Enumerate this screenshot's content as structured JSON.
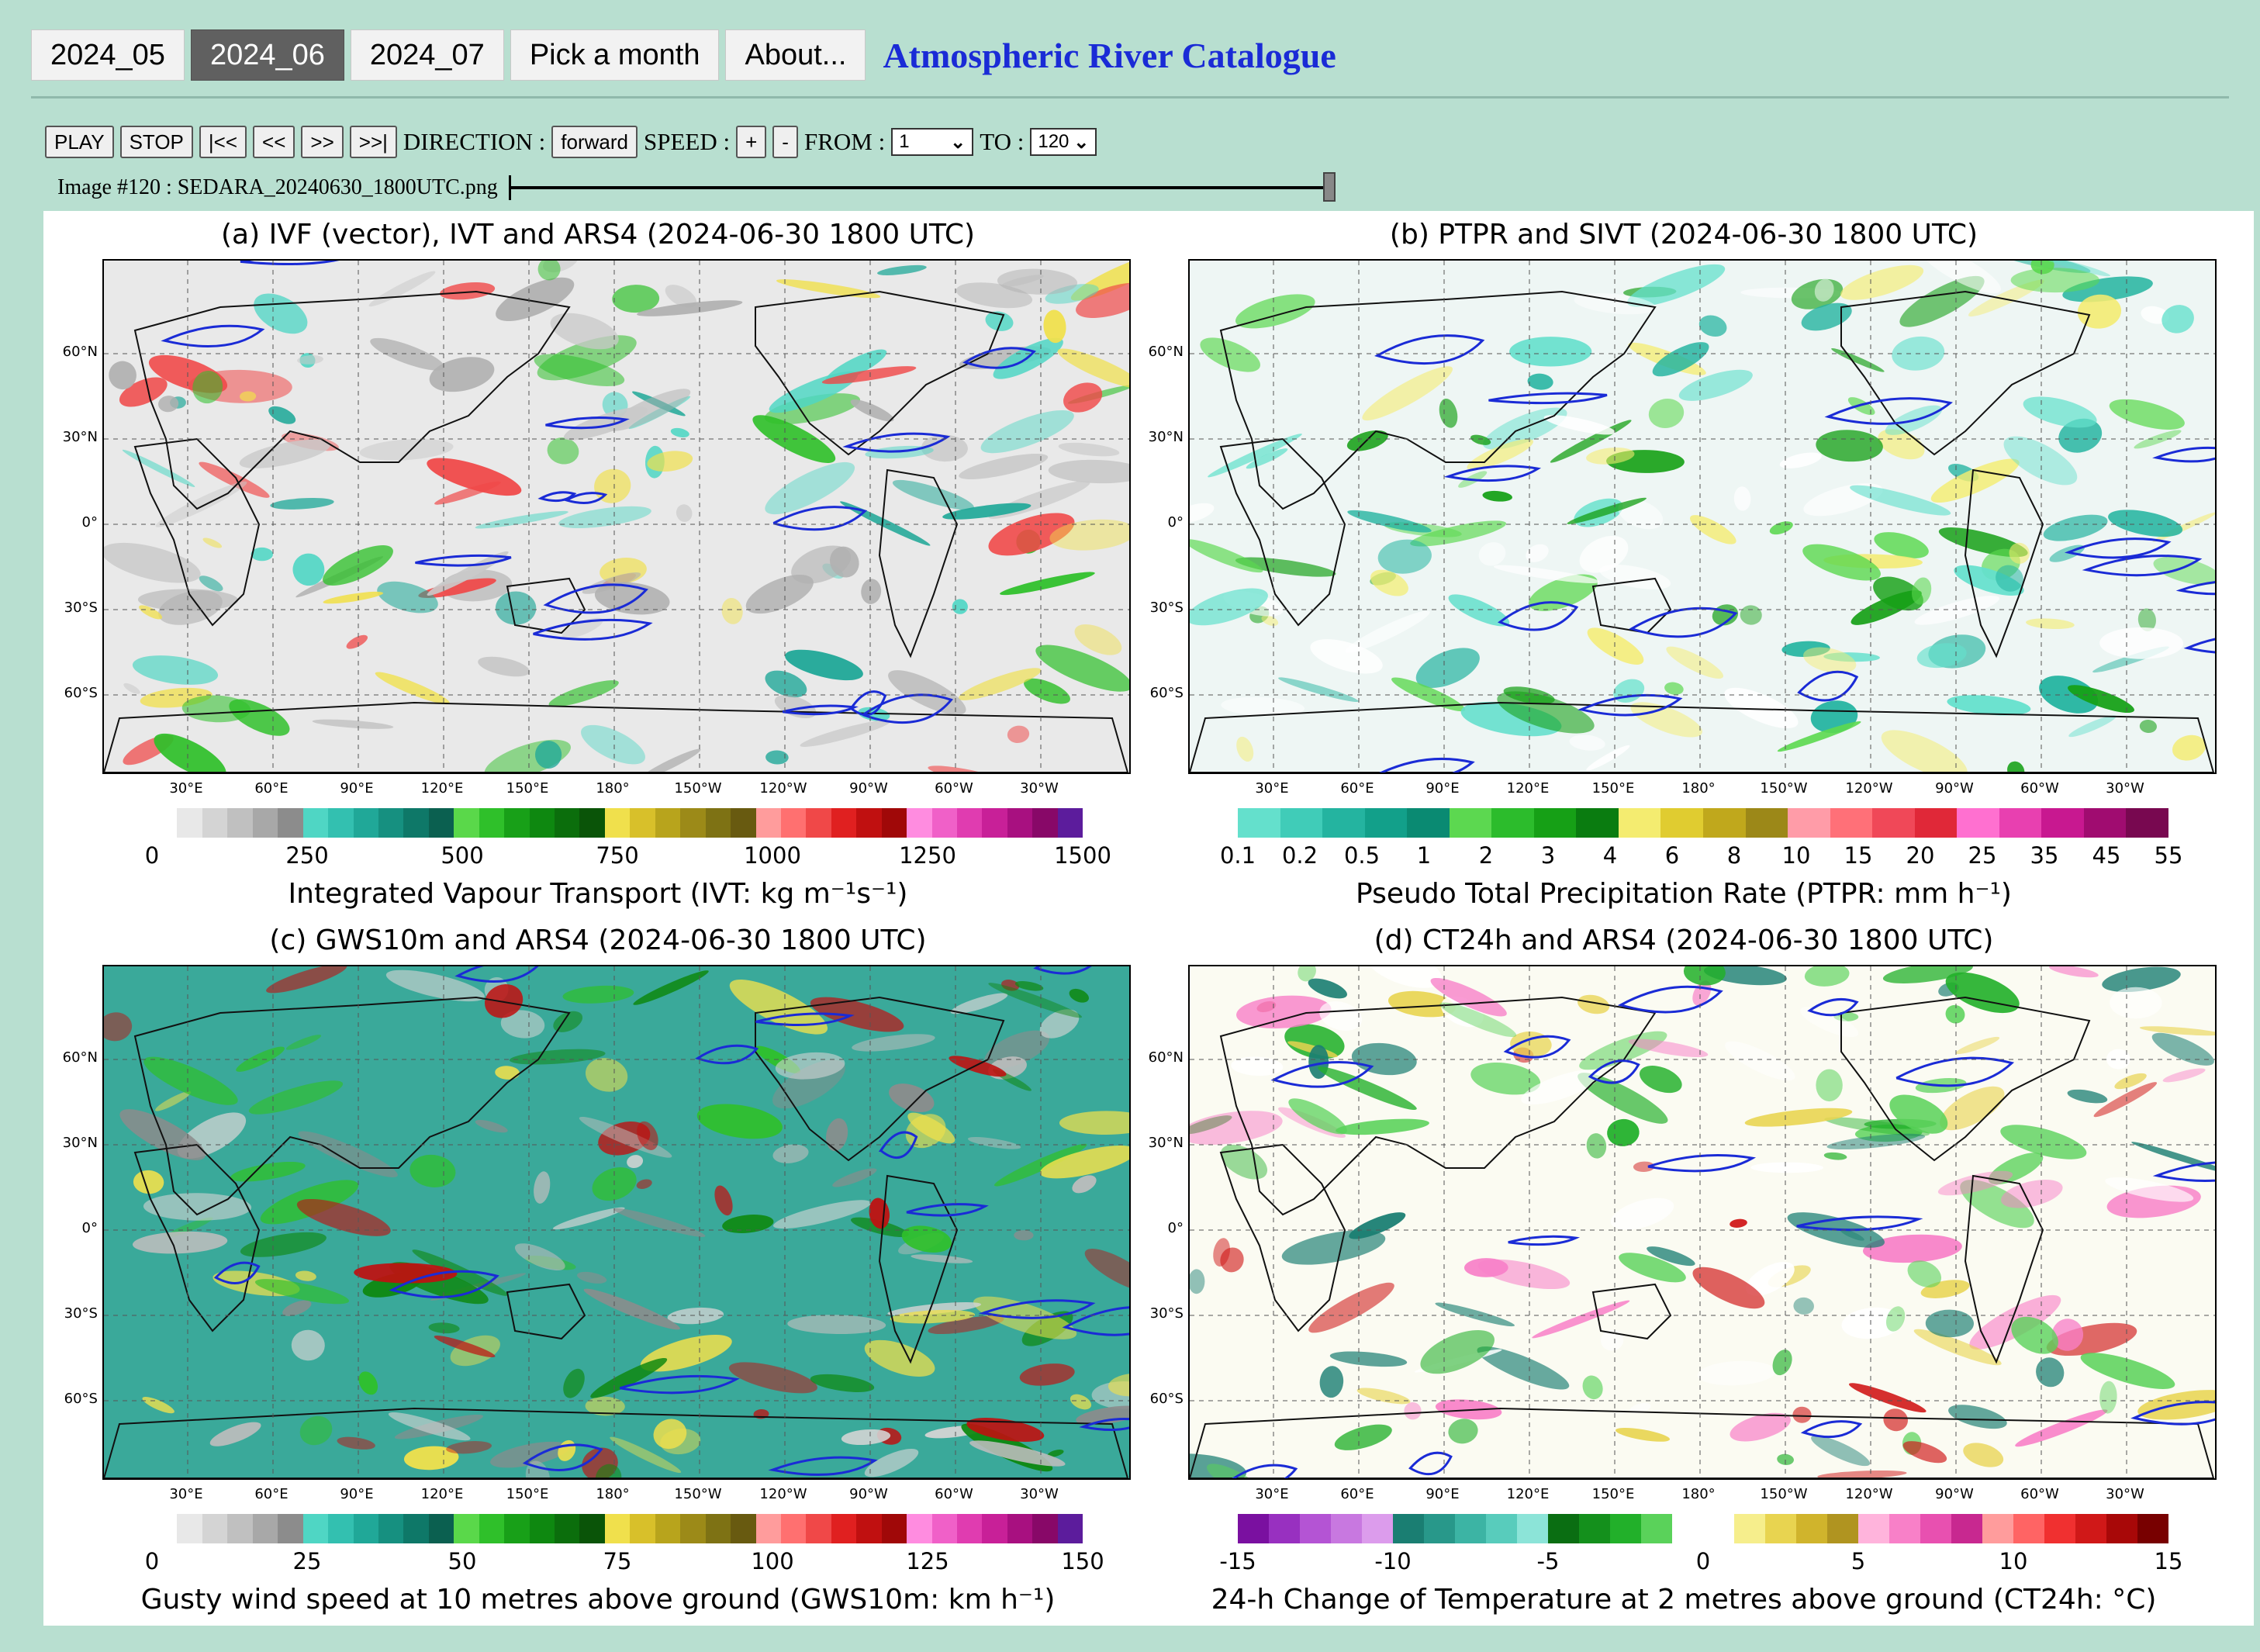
{
  "nav": {
    "tabs": [
      "2024_05",
      "2024_06",
      "2024_07",
      "Pick a month",
      "About..."
    ],
    "active_tab": "2024_06",
    "title": "Atmospheric River Catalogue"
  },
  "controls": {
    "play": "PLAY",
    "stop": "STOP",
    "first": "|<<",
    "prev": "<<",
    "next": ">>",
    "last": ">>|",
    "direction_label": "DIRECTION :",
    "direction_value": "forward",
    "speed_label": "SPEED :",
    "speed_plus": "+",
    "speed_minus": "-",
    "from_label": "FROM :",
    "from_value": "1",
    "to_label": "TO :",
    "to_value": "120",
    "image_caption": "Image #120 : SEDARA_20240630_1800UTC.png",
    "slider_position": 1.0
  },
  "axes": {
    "lat_labels": [
      "60°N",
      "30°N",
      "0°",
      "30°S",
      "60°S"
    ],
    "lon_labels": [
      "30°E",
      "60°E",
      "90°E",
      "120°E",
      "150°E",
      "180°",
      "150°W",
      "120°W",
      "90°W",
      "60°W",
      "30°W"
    ]
  },
  "panels": [
    {
      "title": "(a) IVF (vector), IVT and ARS4 (2024-06-30 1800 UTC)",
      "colorbar_label": "Integrated Vapour Transport (IVT: kg m⁻¹s⁻¹)",
      "ticks": [
        "0",
        "250",
        "500",
        "750",
        "1000",
        "1250",
        "1500"
      ],
      "colors": [
        "#ffffff",
        "#e8e8e8",
        "#d4d4d4",
        "#c0c0c0",
        "#a8a8a8",
        "#8c8c8c",
        "#4fd6c4",
        "#33c0b0",
        "#20a898",
        "#169080",
        "#0e7868",
        "#0b6050",
        "#5ad84a",
        "#2fc02a",
        "#18a018",
        "#0e8810",
        "#0b6e0c",
        "#0a5408",
        "#f0e04c",
        "#d8c02a",
        "#b8a41c",
        "#9c8a18",
        "#7e7214",
        "#685a10",
        "#ff9c9c",
        "#ff7070",
        "#f04848",
        "#e02020",
        "#c01010",
        "#a00808",
        "#ff8ce0",
        "#f060c8",
        "#e03cb0",
        "#c82098",
        "#a81080",
        "#880868",
        "#5c1c9c"
      ]
    },
    {
      "title": "(b) PTPR and SIVT (2024-06-30 1800 UTC)",
      "colorbar_label": "Pseudo Total Precipitation Rate (PTPR: mm h⁻¹)",
      "ticks": [
        "0.1",
        "0.2",
        "0.5",
        "1",
        "2",
        "3",
        "4",
        "6",
        "8",
        "10",
        "15",
        "20",
        "25",
        "35",
        "45",
        "55"
      ],
      "colors": [
        "#64e0cc",
        "#40ccb8",
        "#24b4a0",
        "#12a08a",
        "#0a8a72",
        "#5cd850",
        "#2cbc2c",
        "#16a016",
        "#0a7c10",
        "#f4ec70",
        "#e0cc30",
        "#c0a81c",
        "#9c8818",
        "#ff9ca8",
        "#ff7078",
        "#f04858",
        "#e02838",
        "#ff70d0",
        "#e840b0",
        "#c81890",
        "#a00c70",
        "#780850"
      ]
    },
    {
      "title": "(c) GWS10m and ARS4 (2024-06-30 1800 UTC)",
      "colorbar_label": "Gusty wind speed at 10 metres above ground (GWS10m: km h⁻¹)",
      "ticks": [
        "0",
        "25",
        "50",
        "75",
        "100",
        "125",
        "150"
      ],
      "colors": [
        "#ffffff",
        "#e8e8e8",
        "#d4d4d4",
        "#c0c0c0",
        "#a8a8a8",
        "#8c8c8c",
        "#4fd6c4",
        "#33c0b0",
        "#20a898",
        "#169080",
        "#0e7868",
        "#0b6050",
        "#5ad84a",
        "#2fc02a",
        "#18a018",
        "#0e8810",
        "#0b6e0c",
        "#0a5408",
        "#f0e04c",
        "#d8c02a",
        "#b8a41c",
        "#9c8a18",
        "#7e7214",
        "#685a10",
        "#ff9c9c",
        "#ff7070",
        "#f04848",
        "#e02020",
        "#c01010",
        "#a00808",
        "#ff8ce0",
        "#f060c8",
        "#e03cb0",
        "#c82098",
        "#a81080",
        "#880868",
        "#5c1c9c"
      ]
    },
    {
      "title": "(d) CT24h and ARS4 (2024-06-30 1800 UTC)",
      "colorbar_label": "24-h Change of Temperature at 2 metres above ground (CT24h: °C)",
      "ticks": [
        "-15",
        "-10",
        "-5",
        "0",
        "5",
        "10",
        "15"
      ],
      "colors": [
        "#7a10a0",
        "#9830c0",
        "#b454d4",
        "#c878e0",
        "#dc9cec",
        "#1a7e72",
        "#28988a",
        "#3cb4a4",
        "#58ccbc",
        "#8ce4d8",
        "#0a6e12",
        "#14901c",
        "#22b02a",
        "#5ad25a",
        "#ffffff",
        "#ffffff",
        "#f6ee8c",
        "#e8d450",
        "#d0b42c",
        "#b09420",
        "#ffb4dc",
        "#f880c8",
        "#e850b0",
        "#c82890",
        "#ff9c9c",
        "#ff6464",
        "#f03030",
        "#d01818",
        "#a80808",
        "#780000"
      ]
    }
  ]
}
